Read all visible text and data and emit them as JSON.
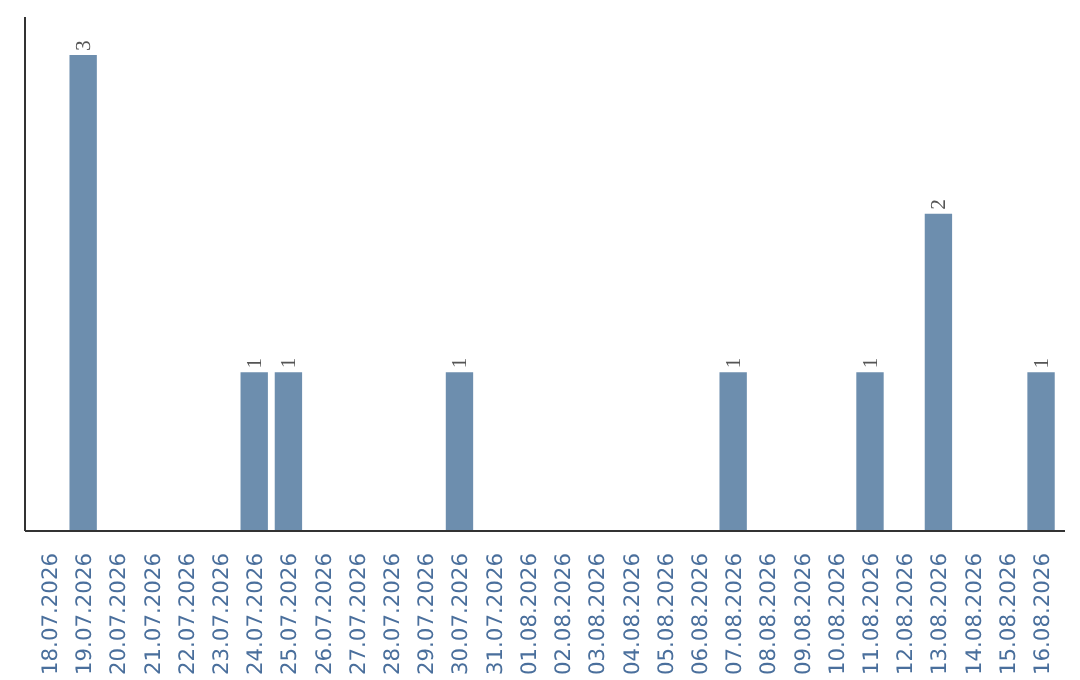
{
  "chart_data": {
    "type": "bar",
    "categories": [
      "18.07.2026",
      "19.07.2026",
      "20.07.2026",
      "21.07.2026",
      "22.07.2026",
      "23.07.2026",
      "24.07.2026",
      "25.07.2026",
      "26.07.2026",
      "27.07.2026",
      "28.07.2026",
      "29.07.2026",
      "30.07.2026",
      "31.07.2026",
      "01.08.2026",
      "02.08.2026",
      "03.08.2026",
      "04.08.2026",
      "05.08.2026",
      "06.08.2026",
      "07.08.2026",
      "08.08.2026",
      "09.08.2026",
      "10.08.2026",
      "11.08.2026",
      "12.08.2026",
      "13.08.2026",
      "14.08.2026",
      "15.08.2026",
      "16.08.2026"
    ],
    "values": [
      0,
      3,
      0,
      0,
      0,
      0,
      1,
      1,
      0,
      0,
      0,
      0,
      1,
      0,
      0,
      0,
      0,
      0,
      0,
      0,
      1,
      0,
      0,
      0,
      1,
      0,
      2,
      0,
      0,
      1
    ],
    "value_labels": [
      null,
      "3",
      null,
      null,
      null,
      null,
      "1",
      "1",
      null,
      null,
      null,
      null,
      "1",
      null,
      null,
      null,
      null,
      null,
      null,
      null,
      "1",
      null,
      null,
      null,
      "1",
      null,
      "2",
      null,
      null,
      "1"
    ],
    "color": "#6d8eae",
    "tick_labels": "x",
    "grid": false
  }
}
